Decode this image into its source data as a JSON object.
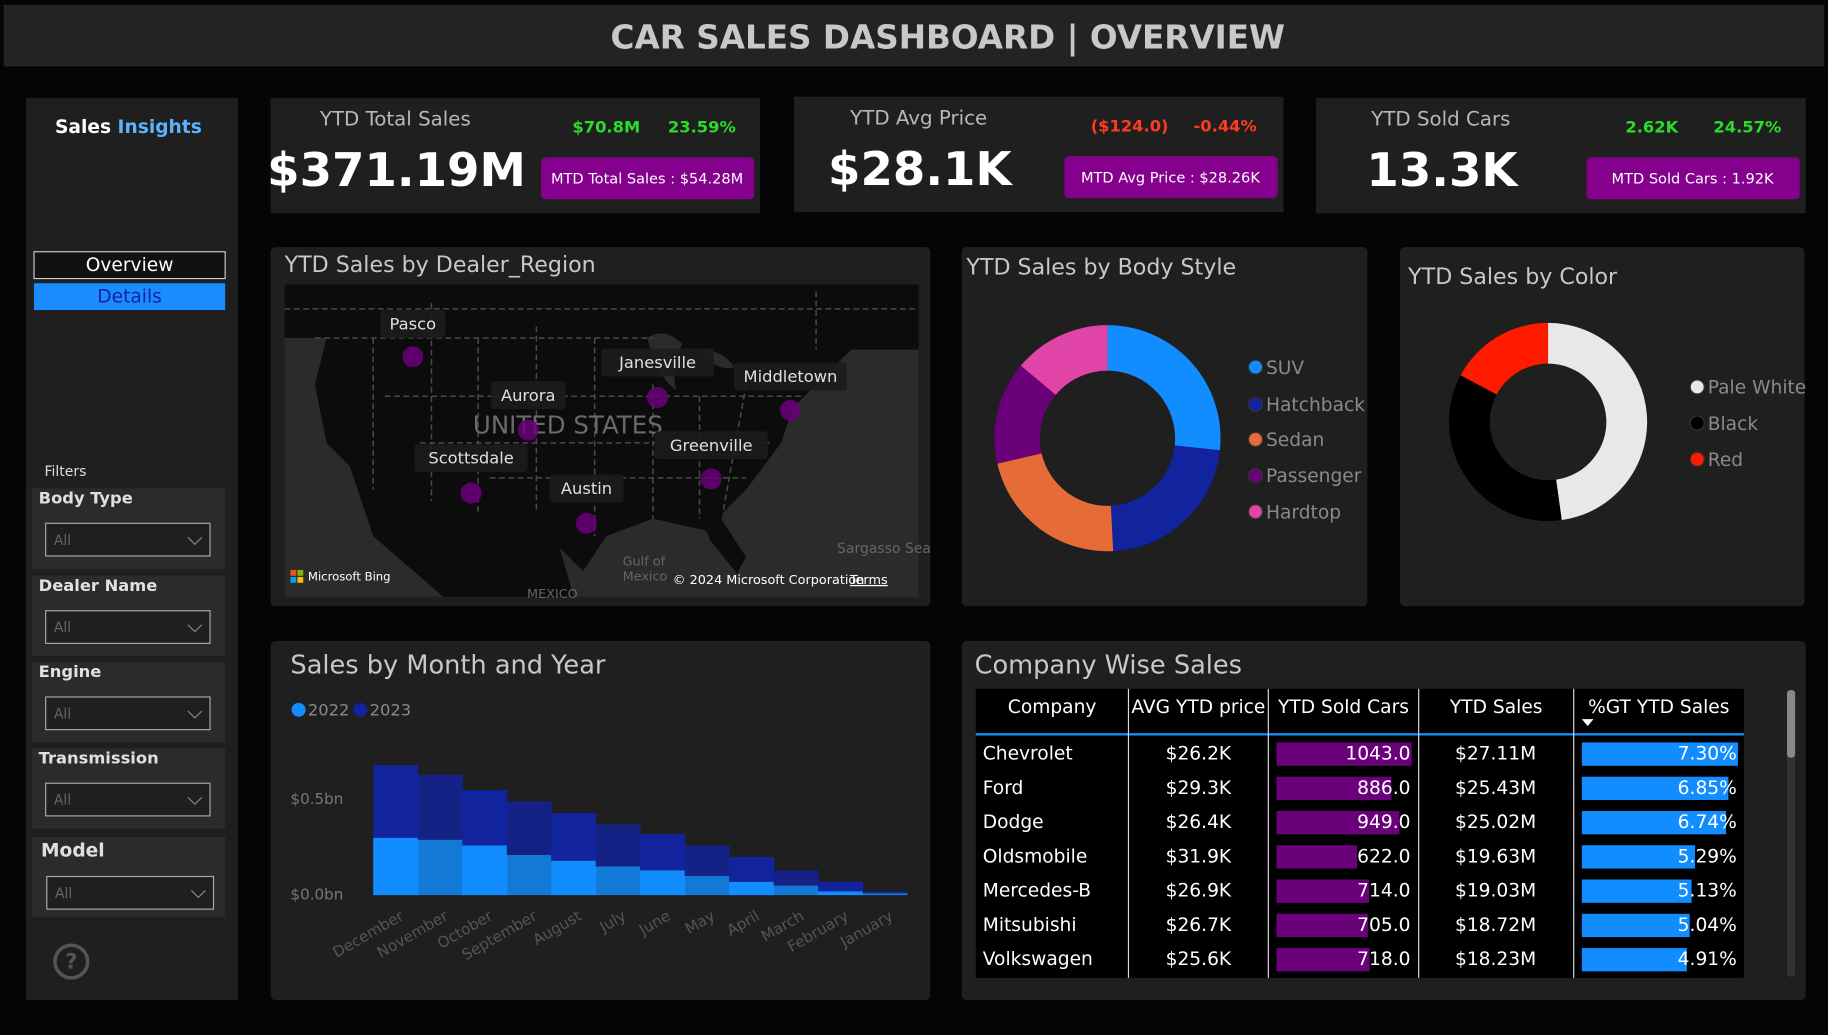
{
  "header": {
    "title": "CAR SALES DASHBOARD | OVERVIEW"
  },
  "sidebar": {
    "brand": [
      "Sales",
      "Insights"
    ],
    "nav": [
      "Overview",
      "Details"
    ],
    "filters_label": "Filters",
    "filters": [
      {
        "label": "Body Type",
        "value": "All"
      },
      {
        "label": "Dealer Name",
        "value": "All"
      },
      {
        "label": "Engine",
        "value": "All"
      },
      {
        "label": "Transmission",
        "value": "All"
      },
      {
        "label": "Model",
        "value": "All"
      }
    ]
  },
  "kpis": [
    {
      "label": "YTD Total Sales",
      "value": "$371.19M",
      "change": "$70.8M",
      "change_pct": "23.59%",
      "color": "#2bdc2b",
      "mtd": "MTD Total Sales : $54.28M"
    },
    {
      "label": "YTD Avg Price",
      "value": "$28.1K",
      "change": "($124.0)",
      "change_pct": "-0.44%",
      "color": "#ff3b1f",
      "mtd": "MTD Avg Price : $28.26K"
    },
    {
      "label": "YTD Sold Cars",
      "value": "13.3K",
      "change": "2.62K",
      "change_pct": "24.57%",
      "color": "#2bdc2b",
      "mtd": "MTD Sold Cars : 1.92K"
    }
  ],
  "map": {
    "title": "YTD Sales by Dealer_Region",
    "country": "UNITED STATES",
    "cities": [
      "Pasco",
      "Janesville",
      "Aurora",
      "Middletown",
      "Scottsdale",
      "Greenville",
      "Austin"
    ],
    "gulf": [
      "Gulf of",
      "Mexico"
    ],
    "sea": "Sargasso Sea",
    "mexico": "MEXICO",
    "brand": "Microsoft Bing",
    "copyright": "© 2024 Microsoft Corporation",
    "terms": "Terms"
  },
  "chart_data": [
    {
      "type": "donut",
      "title": "YTD Sales by Body Style",
      "categories": [
        "SUV",
        "Hatchback",
        "Sedan",
        "Passenger",
        "Hardtop"
      ],
      "values": [
        26.7,
        22.5,
        22.2,
        14.7,
        13.9
      ],
      "colors": [
        "#118dff",
        "#12239e",
        "#e66c37",
        "#6b007b",
        "#e044a7"
      ]
    },
    {
      "type": "donut",
      "title": "YTD Sales by Color",
      "categories": [
        "Pale White",
        "Black",
        "Red"
      ],
      "values": [
        47.8,
        35,
        17.2
      ],
      "colors": [
        "#e8e8e8",
        "#000000",
        "#ff1a00"
      ]
    },
    {
      "type": "area",
      "title": "Sales by Month and Year",
      "stacked": true,
      "categories": [
        "December",
        "November",
        "October",
        "September",
        "August",
        "July",
        "June",
        "May",
        "April",
        "March",
        "February",
        "January"
      ],
      "series": [
        {
          "name": "2022",
          "color": "#118dff",
          "values": [
            0.3,
            0.29,
            0.26,
            0.21,
            0.18,
            0.15,
            0.13,
            0.1,
            0.07,
            0.05,
            0.02,
            0.01
          ]
        },
        {
          "name": "2023",
          "color": "#12239e",
          "values": [
            0.38,
            0.34,
            0.29,
            0.28,
            0.25,
            0.22,
            0.19,
            0.16,
            0.13,
            0.08,
            0.05,
            0.01
          ]
        }
      ],
      "ylim": [
        0,
        0.8
      ],
      "yticks": [
        {
          "value": 0,
          "label": "$0.0bn"
        },
        {
          "value": 0.5,
          "label": "$0.5bn"
        }
      ]
    }
  ],
  "table": {
    "title": "Company Wise Sales",
    "columns": [
      "Company",
      "AVG YTD price",
      "YTD Sold Cars",
      "YTD Sales",
      "%GT YTD Sales"
    ],
    "company": [
      "Chevrolet",
      "Ford",
      "Dodge",
      "Oldsmobile",
      "Mercedes-B",
      "Mitsubishi",
      "Volkswagen"
    ],
    "avg_price": [
      "$26.2K",
      "$29.3K",
      "$26.4K",
      "$31.9K",
      "$26.9K",
      "$26.7K",
      "$25.6K"
    ],
    "sold_cars": {
      "color": "#6b007b",
      "values": [
        1043,
        886,
        949,
        622,
        714,
        705,
        718
      ],
      "value_labels": [
        "1043.0",
        "886.0",
        "949.0",
        "622.0",
        "714.0",
        "705.0",
        "718.0"
      ]
    },
    "ytd_sales": [
      "$27.11M",
      "$25.43M",
      "$25.02M",
      "$19.63M",
      "$19.03M",
      "$18.72M",
      "$18.23M"
    ],
    "gt_share": {
      "color": "#118dff",
      "values": [
        7.3,
        6.85,
        6.74,
        5.29,
        5.13,
        5.04,
        4.91
      ],
      "value_labels": [
        "7.30%",
        "6.85%",
        "6.74%",
        "5.29%",
        "5.13%",
        "5.04%",
        "4.91%"
      ]
    }
  }
}
